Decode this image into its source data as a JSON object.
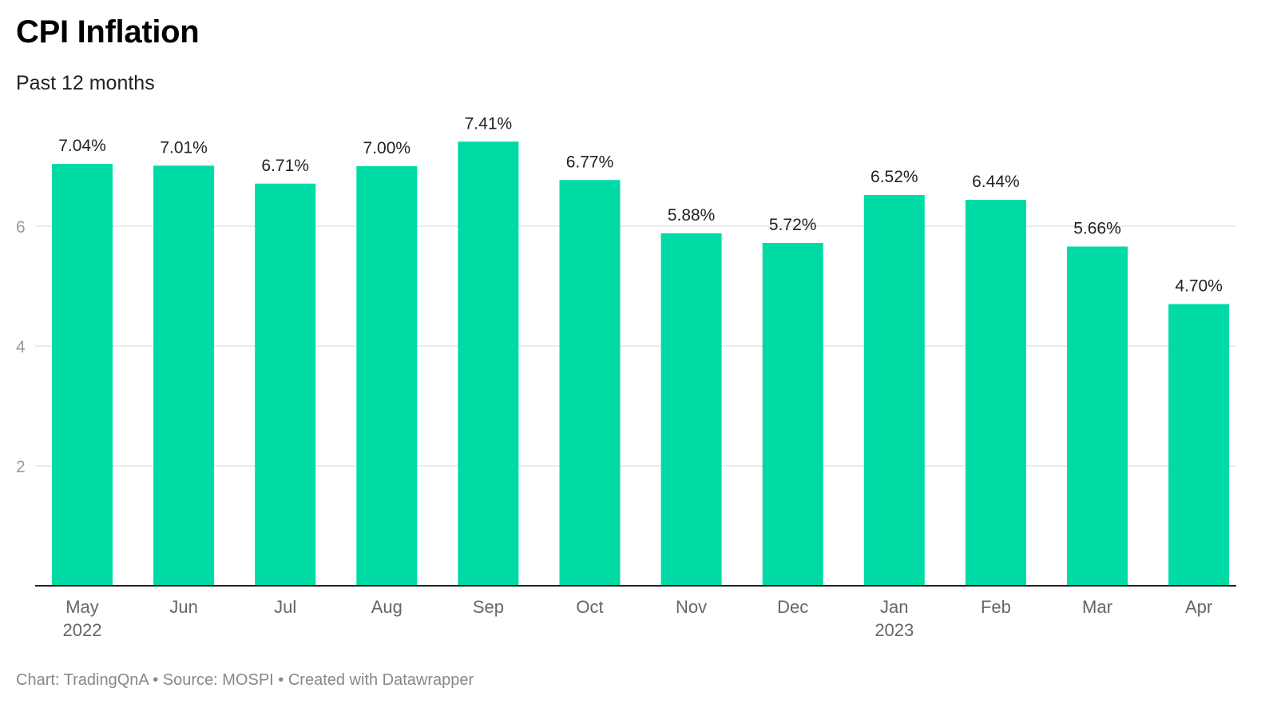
{
  "header": {
    "title": "CPI Inflation",
    "subtitle": "Past 12 months"
  },
  "footer": {
    "credit": "Chart: TradingQnA",
    "separator_1": " • ",
    "source": "Source: MOSPI",
    "separator_2": " • ",
    "made_with": "Created with Datawrapper"
  },
  "colors": {
    "bar": "#00dba6",
    "grid": "#e5e5e5",
    "axis": "#222222"
  },
  "chart_data": {
    "type": "bar",
    "title": "CPI Inflation",
    "subtitle": "Past 12 months",
    "categories": [
      "May",
      "Jun",
      "Jul",
      "Aug",
      "Sep",
      "Oct",
      "Nov",
      "Dec",
      "Jan",
      "Feb",
      "Mar",
      "Apr"
    ],
    "year_labels": [
      "2022",
      "",
      "",
      "",
      "",
      "",
      "",
      "",
      "2023",
      "",
      "",
      ""
    ],
    "values": [
      7.04,
      7.01,
      6.71,
      7.0,
      7.41,
      6.77,
      5.88,
      5.72,
      6.52,
      6.44,
      5.66,
      4.7
    ],
    "value_labels": [
      "7.04%",
      "7.01%",
      "6.71%",
      "7.00%",
      "7.41%",
      "6.77%",
      "5.88%",
      "5.72%",
      "6.52%",
      "6.44%",
      "5.66%",
      "4.70%"
    ],
    "yticks": [
      2,
      4,
      6
    ],
    "ytick_labels": [
      "2",
      "4",
      "6"
    ],
    "ylim": [
      0,
      7.5
    ],
    "grid": true,
    "legend": "none",
    "xlabel": "",
    "ylabel": ""
  }
}
